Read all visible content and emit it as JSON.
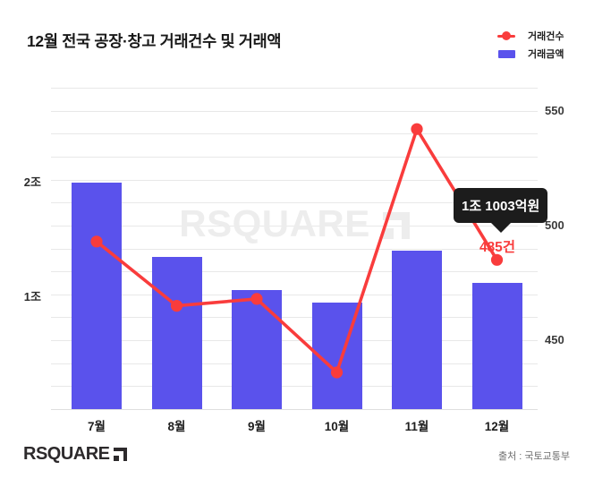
{
  "title": "12월 전국 공장·창고 거래건수 및 거래액",
  "legend": [
    {
      "label": "거래건수",
      "marker": "red-line-dot",
      "color": "#f93c3c"
    },
    {
      "label": "거래금액",
      "marker": "purple-square",
      "color": "#5a52ec"
    }
  ],
  "chart_data": {
    "type": "bar",
    "categories": [
      "7월",
      "8월",
      "9월",
      "10월",
      "11월",
      "12월"
    ],
    "series": [
      {
        "name": "거래금액",
        "type": "bar",
        "axis": "left",
        "unit": "조",
        "color": "#5a52ec",
        "values": [
          1.97,
          1.33,
          1.04,
          0.93,
          1.38,
          1.1
        ]
      },
      {
        "name": "거래건수",
        "type": "line",
        "axis": "right",
        "unit": "건",
        "color": "#f93c3c",
        "values": [
          493,
          465,
          468,
          436,
          542,
          485
        ]
      }
    ],
    "left_axis": {
      "range": [
        0,
        2.8
      ],
      "ticks": [
        "2조",
        "1조"
      ],
      "tick_values": [
        2,
        1
      ]
    },
    "right_axis": {
      "range": [
        420,
        560
      ],
      "ticks": [
        "550",
        "500",
        "450"
      ],
      "tick_values": [
        550,
        500,
        450
      ]
    },
    "gridlines": 15,
    "legend_position": "top-right",
    "annotation": {
      "tooltip": "1조 1003억원",
      "point_label": "485건",
      "target_category": "12월"
    }
  },
  "watermark": "RSQUARE",
  "footer": {
    "logo_text": "RSQUARE",
    "source": "출처 : 국토교통부"
  }
}
